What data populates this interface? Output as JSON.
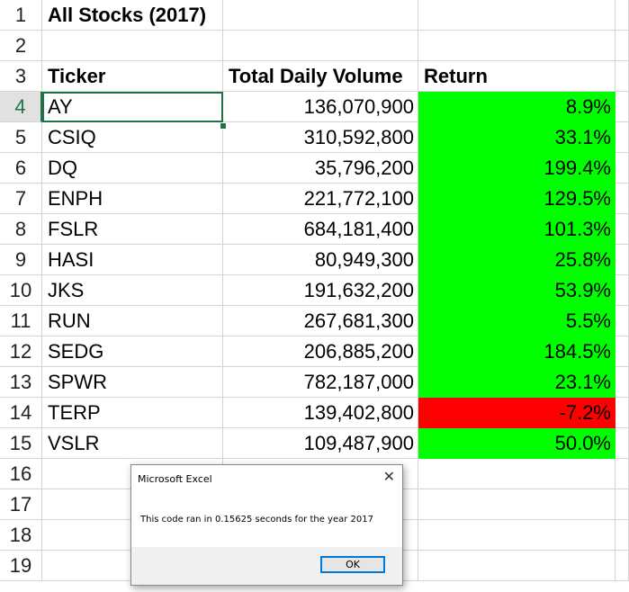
{
  "title": "All Stocks (2017)",
  "headers": {
    "ticker": "Ticker",
    "volume": "Total Daily Volume",
    "return": "Return"
  },
  "row_numbers": [
    "1",
    "2",
    "3",
    "4",
    "5",
    "6",
    "7",
    "8",
    "9",
    "10",
    "11",
    "12",
    "13",
    "14",
    "15",
    "16",
    "17",
    "18",
    "19"
  ],
  "rows": [
    {
      "ticker": "AY",
      "volume": "136,070,900",
      "return": "8.9%",
      "fill": "#00ff00"
    },
    {
      "ticker": "CSIQ",
      "volume": "310,592,800",
      "return": "33.1%",
      "fill": "#00ff00"
    },
    {
      "ticker": "DQ",
      "volume": "35,796,200",
      "return": "199.4%",
      "fill": "#00ff00"
    },
    {
      "ticker": "ENPH",
      "volume": "221,772,100",
      "return": "129.5%",
      "fill": "#00ff00"
    },
    {
      "ticker": "FSLR",
      "volume": "684,181,400",
      "return": "101.3%",
      "fill": "#00ff00"
    },
    {
      "ticker": "HASI",
      "volume": "80,949,300",
      "return": "25.8%",
      "fill": "#00ff00"
    },
    {
      "ticker": "JKS",
      "volume": "191,632,200",
      "return": "53.9%",
      "fill": "#00ff00"
    },
    {
      "ticker": "RUN",
      "volume": "267,681,300",
      "return": "5.5%",
      "fill": "#00ff00"
    },
    {
      "ticker": "SEDG",
      "volume": "206,885,200",
      "return": "184.5%",
      "fill": "#00ff00"
    },
    {
      "ticker": "SPWR",
      "volume": "782,187,000",
      "return": "23.1%",
      "fill": "#00ff00"
    },
    {
      "ticker": "TERP",
      "volume": "139,402,800",
      "return": "-7.2%",
      "fill": "#ff0000"
    },
    {
      "ticker": "VSLR",
      "volume": "109,487,900",
      "return": "50.0%",
      "fill": "#00ff00"
    }
  ],
  "selected_cell": "A4",
  "dialog": {
    "title": "Microsoft Excel",
    "close_icon": "close-icon",
    "message": "This code ran in 0.15625 seconds for the year 2017",
    "ok_label": "OK"
  }
}
